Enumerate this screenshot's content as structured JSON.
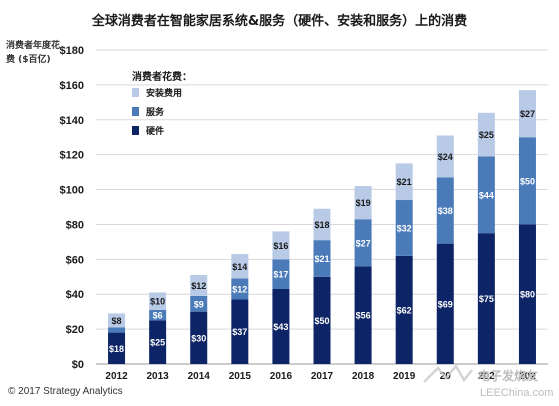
{
  "chart_data": {
    "type": "bar",
    "stacked": true,
    "title": "全球消费者在智能家居系统&服务（硬件、安装和服务）上的消费",
    "ylabel": "消费者年度花费 ($百亿)",
    "xlabel": "",
    "ylim": [
      0,
      180
    ],
    "ytick_step": 20,
    "ytick_labels": [
      "$0",
      "$20",
      "$40",
      "$60",
      "$80",
      "$100",
      "$120",
      "$140",
      "$160",
      "$180"
    ],
    "grid": true,
    "categories": [
      "2012",
      "2013",
      "2014",
      "2015",
      "2016",
      "2017",
      "2018",
      "2019",
      "2020",
      "2021",
      "2022"
    ],
    "xtick_labels": [
      "2012",
      "2013",
      "2014",
      "2015",
      "2016",
      "2017",
      "2018",
      "2019",
      "20",
      "202",
      "202"
    ],
    "legend": {
      "title": "消费者花费：",
      "placement": "top-left",
      "order": [
        "安装费用",
        "服务",
        "硬件"
      ]
    },
    "series": [
      {
        "name": "硬件",
        "color": "#0d2466",
        "label_color": "#ffffff",
        "values": [
          18,
          25,
          30,
          37,
          43,
          50,
          56,
          62,
          69,
          75,
          80
        ],
        "labels": [
          "$18",
          "$25",
          "$30",
          "$37",
          "$43",
          "$50",
          "$56",
          "$62",
          "$69",
          "$75",
          "$80"
        ]
      },
      {
        "name": "服务",
        "color": "#4a7ab8",
        "label_color": "#ffffff",
        "values": [
          3,
          6,
          9,
          12,
          17,
          21,
          27,
          32,
          38,
          44,
          50
        ],
        "labels": [
          "",
          "$6",
          "$9",
          "$12",
          "$17",
          "$21",
          "$27",
          "$32",
          "$38",
          "$44",
          "$50"
        ]
      },
      {
        "name": "安装费用",
        "color": "#b8cae6",
        "label_color": "#1a1a1a",
        "values": [
          8,
          10,
          12,
          14,
          16,
          18,
          19,
          21,
          24,
          25,
          27
        ],
        "labels": [
          "$8",
          "$10",
          "$12",
          "$14",
          "$16",
          "$18",
          "$19",
          "$21",
          "$24",
          "$25",
          "$27"
        ]
      }
    ]
  },
  "copyright": "© 2017 Strategy Analytics",
  "watermark": "电子发烧友 LEEChina.com"
}
